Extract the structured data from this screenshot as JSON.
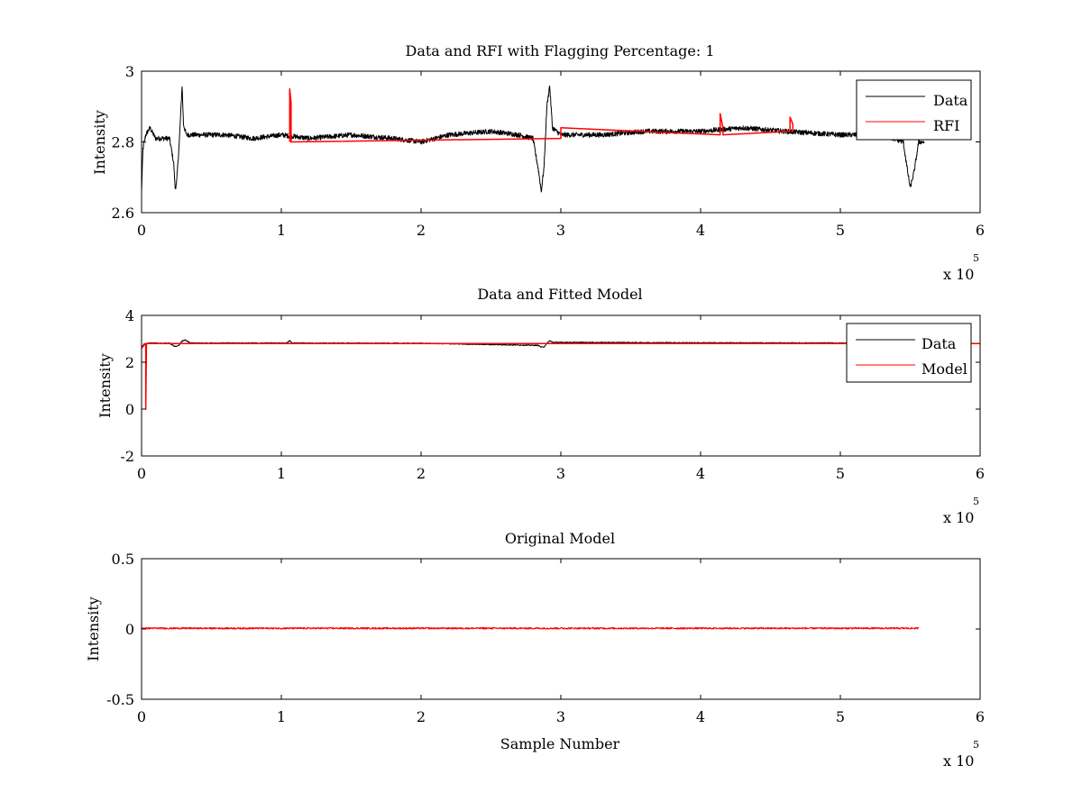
{
  "chart_data": [
    {
      "type": "line",
      "title": "Data and RFI with Flagging Percentage: 1",
      "xlabel": "",
      "ylabel": "Intensity",
      "xlim": [
        0,
        600000
      ],
      "ylim": [
        2.6,
        3.0
      ],
      "x_ticks": [
        0,
        100000,
        200000,
        300000,
        400000,
        500000,
        600000
      ],
      "x_tick_labels": [
        "0",
        "1",
        "2",
        "3",
        "4",
        "5",
        "6"
      ],
      "y_ticks": [
        2.6,
        2.8,
        3.0
      ],
      "y_tick_labels": [
        "2.6",
        "2.8",
        "3"
      ],
      "x_multiplier": "x 10",
      "x_multiplier_exp": "5",
      "grid": false,
      "legend": {
        "position": "top-right",
        "entries": [
          "Data",
          "RFI"
        ]
      },
      "series": [
        {
          "name": "Data",
          "color": "#000000",
          "x": [
            0,
            1000,
            3000,
            6000,
            10000,
            15000,
            20000,
            23000,
            24000,
            25000,
            27000,
            29000,
            30000,
            32000,
            40000,
            60000,
            80000,
            100000,
            120000,
            150000,
            180000,
            200000,
            220000,
            250000,
            270000,
            280000,
            284000,
            286000,
            288000,
            290000,
            292000,
            294000,
            300000,
            330000,
            360000,
            400000,
            430000,
            460000,
            500000,
            530000,
            545000,
            548000,
            550000,
            553000,
            556000,
            560000
          ],
          "y": [
            2.66,
            2.78,
            2.82,
            2.84,
            2.81,
            2.81,
            2.81,
            2.74,
            2.67,
            2.68,
            2.8,
            2.96,
            2.85,
            2.82,
            2.82,
            2.82,
            2.81,
            2.82,
            2.81,
            2.82,
            2.81,
            2.8,
            2.82,
            2.83,
            2.82,
            2.81,
            2.72,
            2.66,
            2.73,
            2.9,
            2.96,
            2.84,
            2.82,
            2.82,
            2.83,
            2.83,
            2.84,
            2.83,
            2.82,
            2.82,
            2.8,
            2.72,
            2.67,
            2.72,
            2.8,
            2.8
          ],
          "noise": 0.007
        },
        {
          "name": "RFI",
          "color": "#ff0000",
          "x": [
            106000,
            106000,
            106500,
            107000,
            107000,
            300000,
            300000,
            414000,
            414000,
            415000,
            416000,
            416000,
            464000,
            464000,
            465000,
            466000,
            466000
          ],
          "y": [
            2.8,
            2.95,
            2.93,
            2.91,
            2.8,
            2.81,
            2.84,
            2.82,
            2.88,
            2.86,
            2.84,
            2.82,
            2.83,
            2.87,
            2.86,
            2.85,
            2.83
          ]
        }
      ]
    },
    {
      "type": "line",
      "title": "Data and Fitted Model",
      "xlabel": "",
      "ylabel": "Intensity",
      "xlim": [
        0,
        600000
      ],
      "ylim": [
        -2,
        4
      ],
      "x_ticks": [
        0,
        100000,
        200000,
        300000,
        400000,
        500000,
        600000
      ],
      "x_tick_labels": [
        "0",
        "1",
        "2",
        "3",
        "4",
        "5",
        "6"
      ],
      "y_ticks": [
        -2,
        0,
        2,
        4
      ],
      "y_tick_labels": [
        "-2",
        "0",
        "2",
        "4"
      ],
      "x_multiplier": "x 10",
      "x_multiplier_exp": "5",
      "grid": false,
      "legend": {
        "position": "top-right",
        "entries": [
          "Data",
          "Model"
        ]
      },
      "series": [
        {
          "name": "Data",
          "color": "#000000",
          "x": [
            0,
            2000,
            6000,
            20000,
            23000,
            25000,
            27000,
            29000,
            31000,
            35000,
            100000,
            104000,
            106000,
            108000,
            200000,
            284000,
            286000,
            288000,
            290000,
            292000,
            294000,
            400000,
            500000,
            560000
          ],
          "y": [
            2.66,
            2.78,
            2.82,
            2.81,
            2.7,
            2.66,
            2.75,
            2.9,
            2.95,
            2.82,
            2.82,
            2.82,
            2.92,
            2.82,
            2.81,
            2.72,
            2.64,
            2.66,
            2.8,
            2.92,
            2.85,
            2.83,
            2.82,
            2.8
          ],
          "noise": 0.02
        },
        {
          "name": "Model",
          "color": "#ff0000",
          "x": [
            0,
            2500,
            3000,
            3000,
            3500,
            600000
          ],
          "y": [
            2.6,
            2.78,
            2.8,
            0,
            2.8,
            2.8
          ]
        }
      ]
    },
    {
      "type": "line",
      "title": "Original Model",
      "xlabel": "Sample Number",
      "ylabel": "Intensity",
      "xlim": [
        0,
        600000
      ],
      "ylim": [
        -0.5,
        0.5
      ],
      "x_ticks": [
        0,
        100000,
        200000,
        300000,
        400000,
        500000,
        600000
      ],
      "x_tick_labels": [
        "0",
        "1",
        "2",
        "3",
        "4",
        "5",
        "6"
      ],
      "y_ticks": [
        -0.5,
        0,
        0.5
      ],
      "y_tick_labels": [
        "-0.5",
        "0",
        "0.5"
      ],
      "x_multiplier": "x 10",
      "x_multiplier_exp": "5",
      "grid": false,
      "legend": null,
      "series": [
        {
          "color": "#ff0000",
          "x": [
            0,
            556000
          ],
          "y": [
            0.005,
            0.005
          ],
          "noise": 0.006
        }
      ]
    }
  ]
}
